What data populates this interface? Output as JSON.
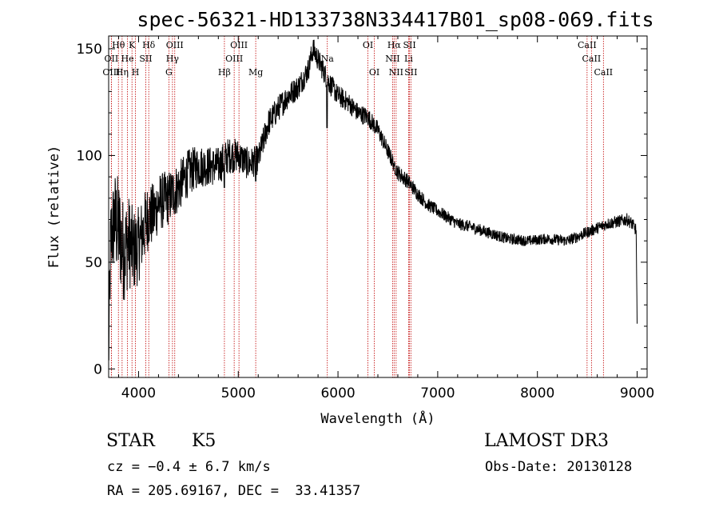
{
  "info": {
    "object_class": "STAR",
    "subclass": "K5",
    "survey": "LAMOST DR3",
    "redshift_text": "cz = −0.4 ± 6.7 km/s",
    "obs_date": "Obs-Date: 20130128",
    "coords": "RA = 205.69167, DEC =  33.41357"
  },
  "chart_data": {
    "type": "line",
    "title": "spec-56321-HD133738N334417B01_sp08-069.fits",
    "xlabel": "Wavelength (Å)",
    "ylabel": "Flux (relative)",
    "xlim": [
      3700,
      9100
    ],
    "ylim": [
      -4,
      156
    ],
    "xticks": [
      4000,
      5000,
      6000,
      7000,
      8000,
      9000
    ],
    "yticks": [
      0,
      50,
      100,
      150
    ],
    "anchors": [
      [
        3700,
        5
      ],
      [
        3720,
        60
      ],
      [
        3760,
        70
      ],
      [
        3800,
        65
      ],
      [
        3850,
        55
      ],
      [
        3900,
        60
      ],
      [
        3950,
        55
      ],
      [
        4000,
        58
      ],
      [
        4050,
        65
      ],
      [
        4100,
        72
      ],
      [
        4150,
        72
      ],
      [
        4200,
        78
      ],
      [
        4300,
        80
      ],
      [
        4400,
        85
      ],
      [
        4500,
        92
      ],
      [
        4600,
        95
      ],
      [
        4700,
        95
      ],
      [
        4800,
        95
      ],
      [
        4900,
        100
      ],
      [
        5000,
        100
      ],
      [
        5100,
        96
      ],
      [
        5200,
        98
      ],
      [
        5300,
        115
      ],
      [
        5400,
        122
      ],
      [
        5500,
        128
      ],
      [
        5600,
        132
      ],
      [
        5700,
        140
      ],
      [
        5750,
        150
      ],
      [
        5800,
        145
      ],
      [
        5850,
        140
      ],
      [
        5900,
        135
      ],
      [
        6000,
        128
      ],
      [
        6100,
        125
      ],
      [
        6200,
        120
      ],
      [
        6300,
        118
      ],
      [
        6400,
        112
      ],
      [
        6500,
        102
      ],
      [
        6600,
        92
      ],
      [
        6700,
        88
      ],
      [
        6800,
        82
      ],
      [
        6900,
        77
      ],
      [
        7000,
        74
      ],
      [
        7100,
        71
      ],
      [
        7200,
        68
      ],
      [
        7300,
        67
      ],
      [
        7500,
        64
      ],
      [
        7700,
        61
      ],
      [
        7900,
        60
      ],
      [
        8100,
        61
      ],
      [
        8300,
        60
      ],
      [
        8500,
        64
      ],
      [
        8700,
        68
      ],
      [
        8800,
        69
      ],
      [
        8900,
        70
      ],
      [
        8950,
        68
      ],
      [
        8990,
        65
      ],
      [
        9000,
        20
      ]
    ],
    "noise": [
      [
        3700,
        20
      ],
      [
        3800,
        26
      ],
      [
        3900,
        22
      ],
      [
        4000,
        18
      ],
      [
        4100,
        16
      ],
      [
        4200,
        14
      ],
      [
        4400,
        12
      ],
      [
        4600,
        10
      ],
      [
        4800,
        9
      ],
      [
        5000,
        8
      ],
      [
        5200,
        7
      ],
      [
        5500,
        6
      ],
      [
        6000,
        5
      ],
      [
        6500,
        4
      ],
      [
        7000,
        3
      ],
      [
        8000,
        2.5
      ],
      [
        9000,
        3
      ]
    ],
    "features": [
      [
        5890,
        113
      ],
      [
        4861,
        85
      ],
      [
        5175,
        88
      ],
      [
        6563,
        95
      ]
    ],
    "lines": [
      {
        "name": "Hθ",
        "wave": 3798,
        "row": 1
      },
      {
        "name": "OII",
        "wave": 3727,
        "row": 2
      },
      {
        "name": "OIII",
        "wave": 3727,
        "row": 3
      },
      {
        "name": "He",
        "wave": 3889,
        "row": 2
      },
      {
        "name": "Hη",
        "wave": 3835,
        "row": 3
      },
      {
        "name": "K",
        "wave": 3934,
        "row": 1
      },
      {
        "name": "SII",
        "wave": 4072,
        "row": 2
      },
      {
        "name": "H",
        "wave": 3969,
        "row": 3
      },
      {
        "name": "Hδ",
        "wave": 4102,
        "row": 1
      },
      {
        "name": "OIII",
        "wave": 4363,
        "row": 1
      },
      {
        "name": "Hγ",
        "wave": 4340,
        "row": 2
      },
      {
        "name": "G",
        "wave": 4304,
        "row": 3
      },
      {
        "name": "Hβ",
        "wave": 4861,
        "row": 3
      },
      {
        "name": "OIII",
        "wave": 5007,
        "row": 1
      },
      {
        "name": "OIII",
        "wave": 4959,
        "row": 2
      },
      {
        "name": "Mg",
        "wave": 5175,
        "row": 3
      },
      {
        "name": "Na",
        "wave": 5893,
        "row": 2
      },
      {
        "name": "OI",
        "wave": 6300,
        "row": 1
      },
      {
        "name": "OI",
        "wave": 6364,
        "row": 3
      },
      {
        "name": "Hα",
        "wave": 6563,
        "row": 1
      },
      {
        "name": "NII",
        "wave": 6548,
        "row": 2
      },
      {
        "name": "NII",
        "wave": 6583,
        "row": 3
      },
      {
        "name": "SII",
        "wave": 6717,
        "row": 1
      },
      {
        "name": "Li",
        "wave": 6708,
        "row": 2
      },
      {
        "name": "SII",
        "wave": 6731,
        "row": 3
      },
      {
        "name": "CaII",
        "wave": 8498,
        "row": 1
      },
      {
        "name": "CaII",
        "wave": 8542,
        "row": 2
      },
      {
        "name": "CaII",
        "wave": 8662,
        "row": 3
      }
    ],
    "colors": {
      "spectrum": "#000000",
      "marker": "#c00000",
      "axes": "#000000"
    }
  }
}
